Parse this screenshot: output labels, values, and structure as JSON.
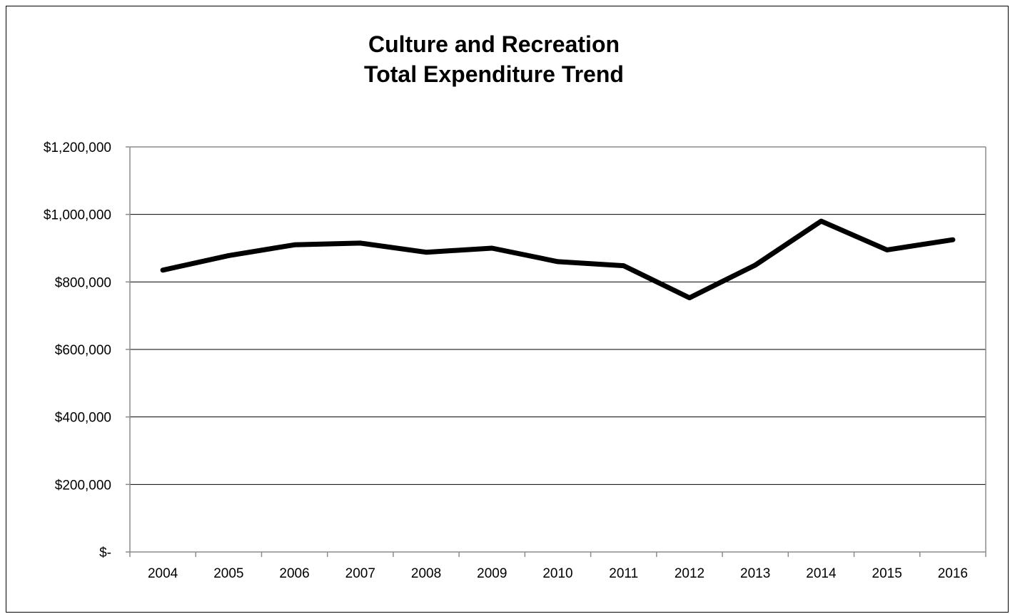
{
  "chart_data": {
    "type": "line",
    "title": [
      "Culture and Recreation",
      "Total Expenditure Trend"
    ],
    "xlabel": "",
    "ylabel": "",
    "categories": [
      "2004",
      "2005",
      "2006",
      "2007",
      "2008",
      "2009",
      "2010",
      "2011",
      "2012",
      "2013",
      "2014",
      "2015",
      "2016"
    ],
    "series": [
      {
        "values": [
          835000,
          878000,
          910000,
          915000,
          888000,
          900000,
          860000,
          848000,
          753000,
          850000,
          980000,
          895000,
          925000
        ],
        "color": "#000000"
      }
    ],
    "ylim": [
      0,
      1200000
    ],
    "yticks": [
      0,
      200000,
      400000,
      600000,
      800000,
      1000000,
      1200000
    ],
    "ytick_labels": [
      "$-",
      "$200,000",
      "$400,000",
      "$600,000",
      "$800,000",
      "$1,000,000",
      "$1,200,000"
    ],
    "grid": true,
    "legend": "none"
  }
}
